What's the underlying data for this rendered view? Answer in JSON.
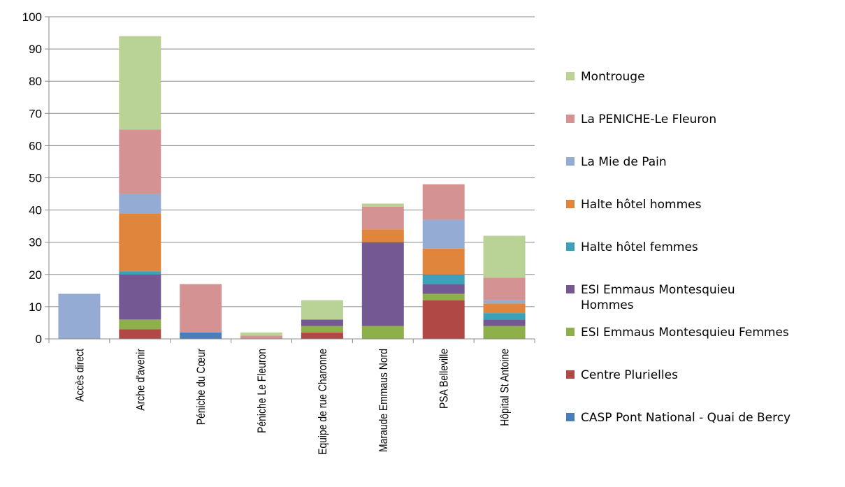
{
  "chart_data": {
    "type": "bar",
    "stacked": true,
    "ylim": [
      0,
      100
    ],
    "yticks": [
      0,
      10,
      20,
      30,
      40,
      50,
      60,
      70,
      80,
      90,
      100
    ],
    "grid": true,
    "legend_position": "right",
    "categories": [
      "Accès direct",
      "Arche d'avenir",
      "Péniche du Cœur",
      "Péniche Le Fleuron",
      "Equipe de rue Charonne",
      "Maraude Emmaus Nord",
      "PSA Belleville",
      "Hôpital St Antoine"
    ],
    "series": [
      {
        "name": "CASP Pont National - Quai de Bercy",
        "color": "#4a7ebb",
        "values": [
          0,
          0,
          2,
          0,
          0,
          0,
          0,
          0
        ]
      },
      {
        "name": "Centre Plurielles",
        "color": "#b04846",
        "values": [
          0,
          3,
          0,
          0,
          2,
          0,
          12,
          0
        ]
      },
      {
        "name": "ESI Emmaus Montesquieu Femmes",
        "color": "#8eb04a",
        "values": [
          0,
          3,
          0,
          0,
          2,
          4,
          2,
          4
        ]
      },
      {
        "name": "ESI Emmaus Montesquieu Hommes",
        "color": "#745893",
        "values": [
          0,
          14,
          0,
          0,
          2,
          26,
          3,
          2
        ]
      },
      {
        "name": "Halte hôtel femmes",
        "color": "#3aa1b8",
        "values": [
          0,
          1,
          0,
          0,
          0,
          0,
          3,
          2
        ]
      },
      {
        "name": "Halte hôtel hommes",
        "color": "#e0853c",
        "values": [
          0,
          18,
          0,
          0,
          0,
          4,
          8,
          3
        ]
      },
      {
        "name": "La Mie de Pain",
        "color": "#94abd3",
        "values": [
          14,
          6,
          0,
          0,
          0,
          0,
          9,
          1
        ]
      },
      {
        "name": "La PENICHE-Le Fleuron",
        "color": "#d49392",
        "values": [
          0,
          20,
          15,
          1,
          0,
          7,
          11,
          7
        ]
      },
      {
        "name": "Montrouge",
        "color": "#b9d295",
        "values": [
          0,
          29,
          0,
          1,
          6,
          1,
          0,
          13
        ]
      }
    ],
    "legend": [
      {
        "label": "Montrouge",
        "color": "#b9d295"
      },
      {
        "label": "La PENICHE-Le Fleuron",
        "color": "#d49392"
      },
      {
        "label": "La Mie de Pain",
        "color": "#94abd3"
      },
      {
        "label": "Halte hôtel hommes",
        "color": "#e0853c"
      },
      {
        "label": "Halte hôtel femmes",
        "color": "#3aa1b8"
      },
      {
        "label": [
          "ESI Emmaus Montesquieu",
          "Hommes"
        ],
        "color": "#745893"
      },
      {
        "label": "ESI Emmaus Montesquieu Femmes",
        "color": "#8eb04a"
      },
      {
        "label": "Centre Plurielles",
        "color": "#b04846"
      },
      {
        "label": "CASP Pont National - Quai de Bercy",
        "color": "#4a7ebb"
      }
    ]
  }
}
